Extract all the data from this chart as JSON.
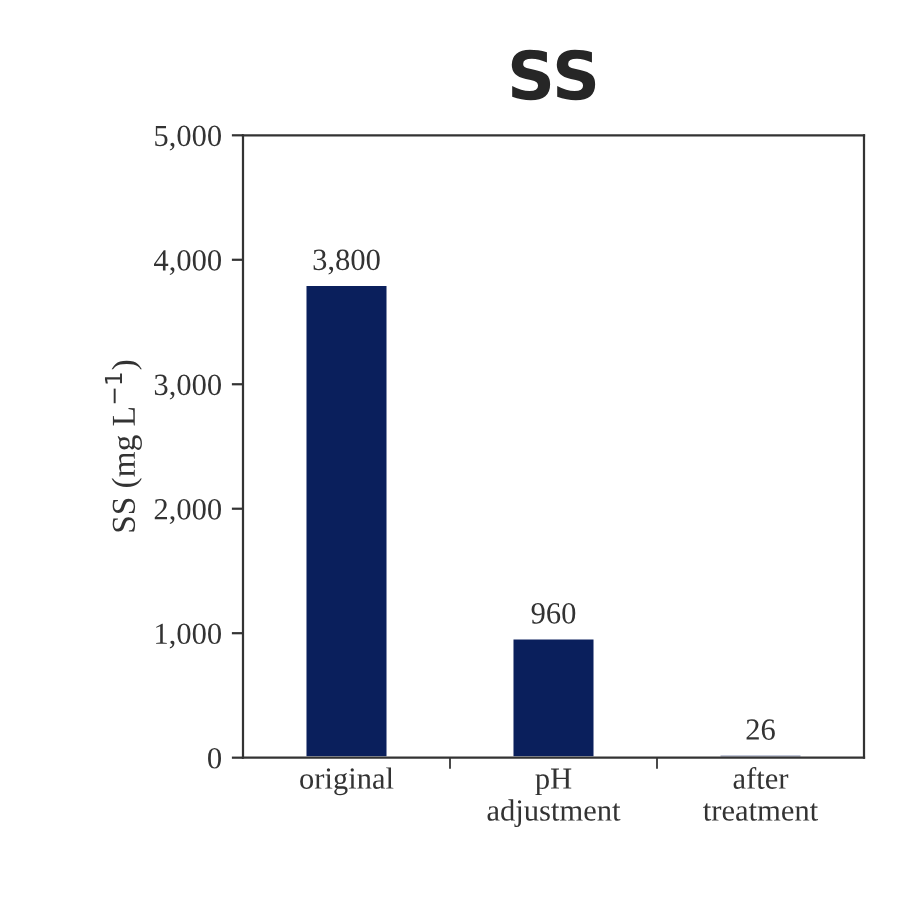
{
  "chart_data": {
    "type": "bar",
    "title": "SS",
    "ylabel": "SS (mg L$^{−1}$)",
    "categories": [
      "original",
      "pH\nadjustment",
      "after\ntreatment"
    ],
    "values": [
      3800,
      960,
      26
    ],
    "value_labels": [
      "3,800",
      "960",
      "26"
    ],
    "color": "#0a1f5c",
    "ylim": [
      0,
      5000
    ],
    "yticks": [
      {
        "value": 0,
        "label": "0"
      },
      {
        "value": 1000,
        "label": "1,000"
      },
      {
        "value": 2000,
        "label": "2,000"
      },
      {
        "value": 3000,
        "label": "3,000"
      },
      {
        "value": 4000,
        "label": "4,000"
      },
      {
        "value": 5000,
        "label": "5,000"
      }
    ],
    "grid": false
  }
}
